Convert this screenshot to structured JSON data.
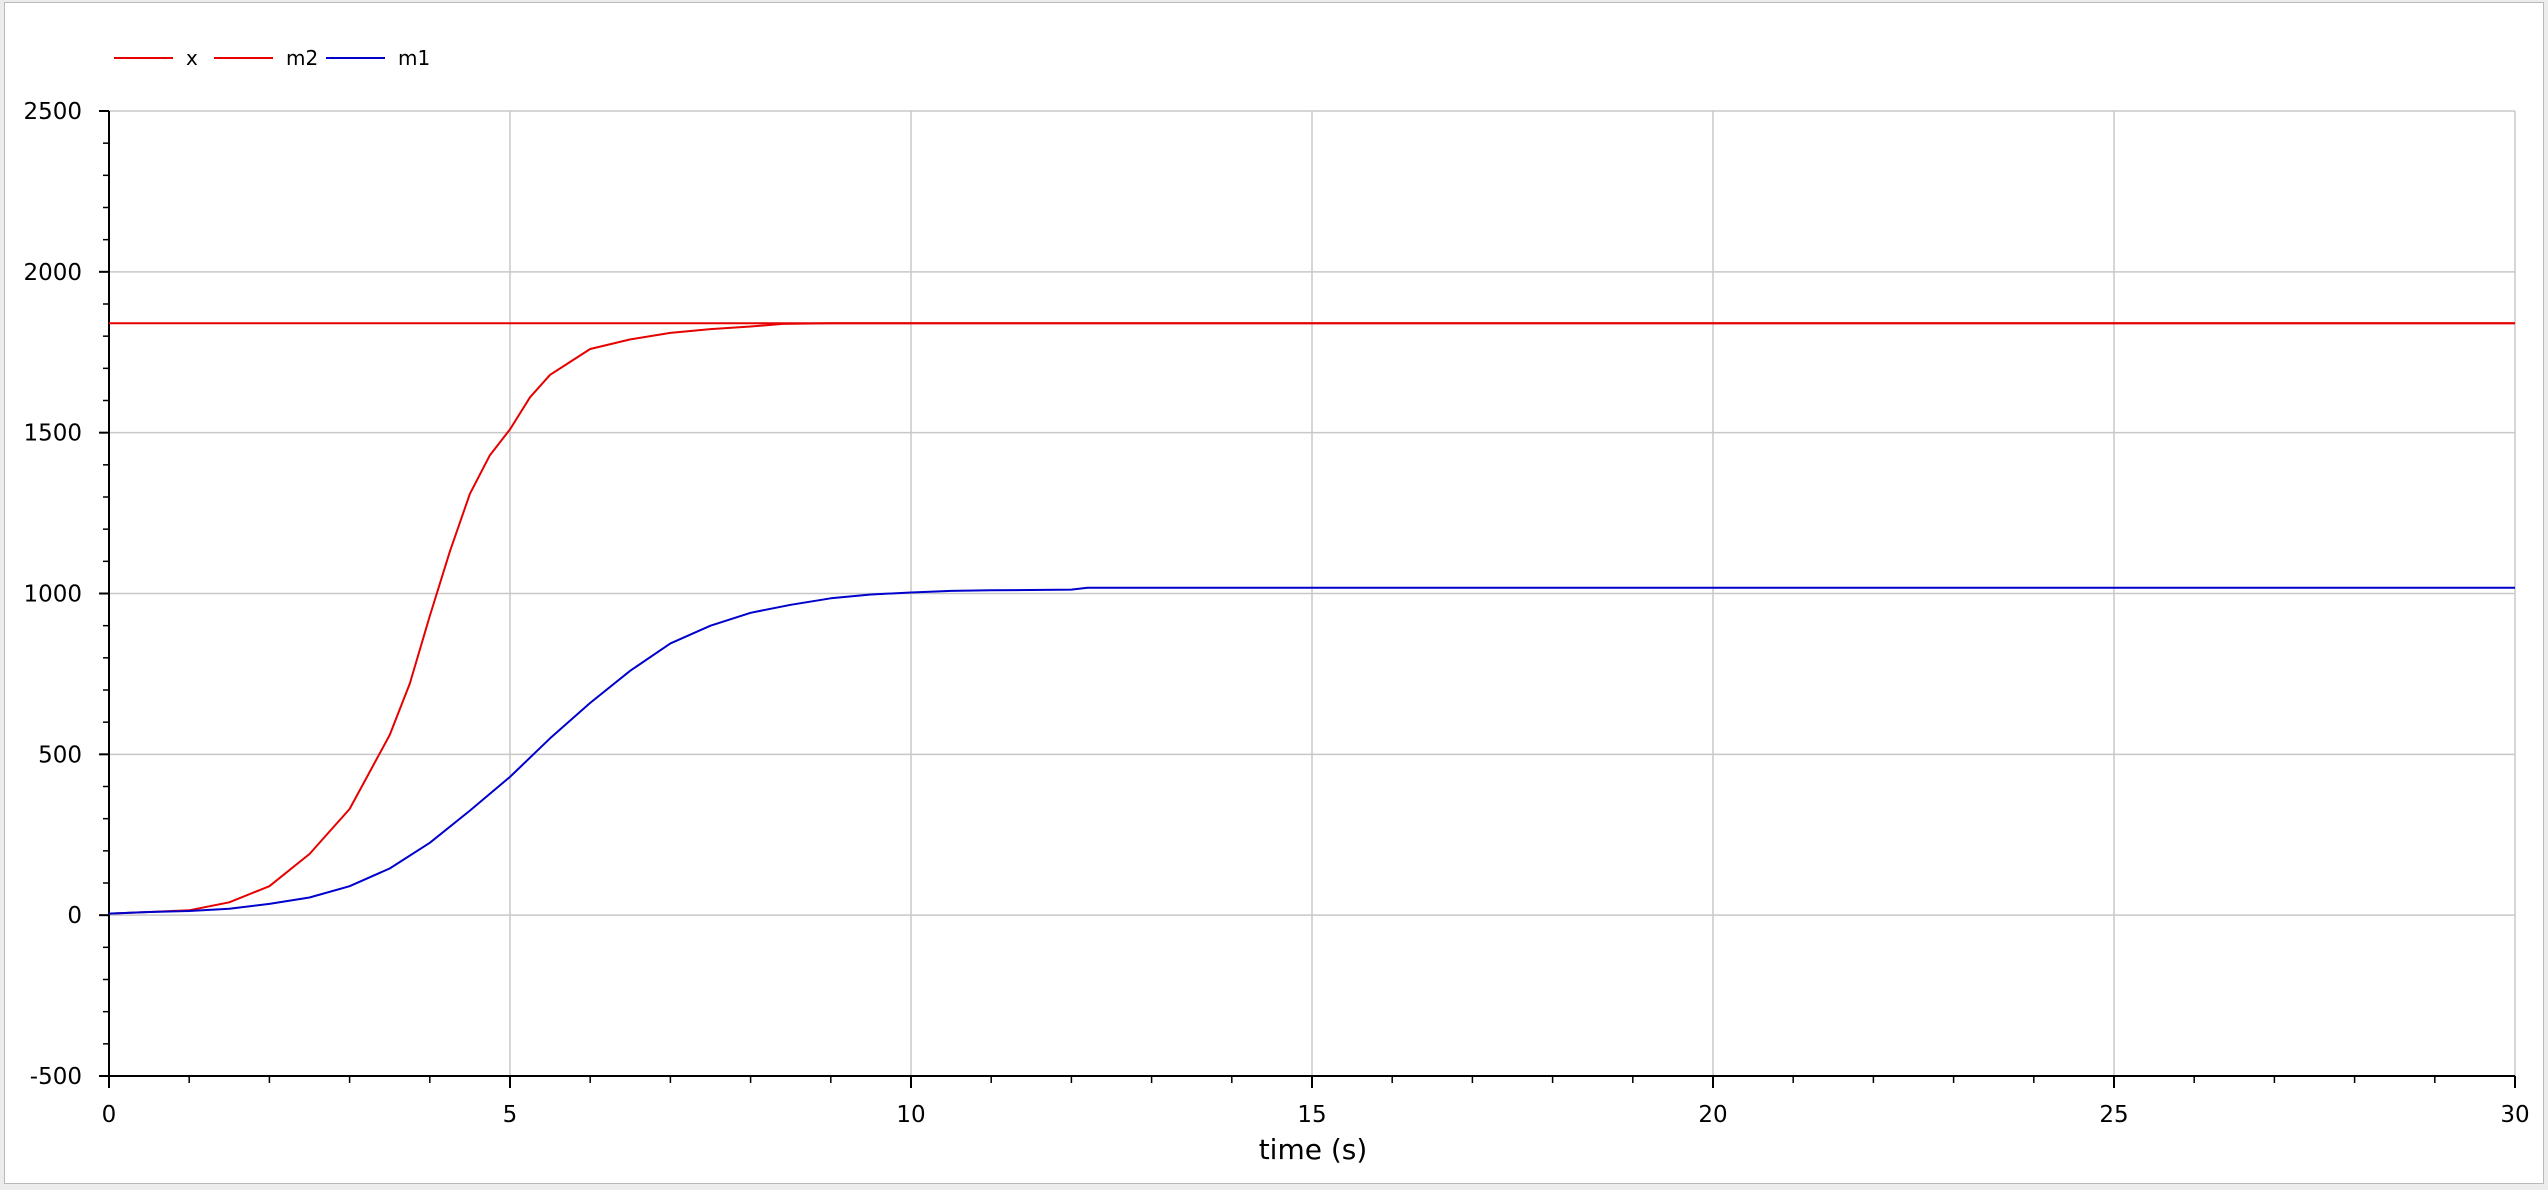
{
  "chart_data": {
    "type": "line",
    "title": "",
    "xlabel": "time (s)",
    "ylabel": "",
    "xlim": [
      0,
      30
    ],
    "ylim": [
      -500,
      2500
    ],
    "grid": true,
    "legend_position": "top-left",
    "x_ticks": [
      0,
      5,
      10,
      15,
      20,
      25,
      30
    ],
    "x_tick_labels": [
      "0",
      "5",
      "10",
      "15",
      "20",
      "25",
      "30"
    ],
    "y_ticks": [
      -500,
      0,
      500,
      1000,
      1500,
      2000,
      2500
    ],
    "y_tick_labels": [
      "-500",
      "0",
      "500",
      "1000",
      "1500",
      "2000",
      "2500"
    ],
    "series": [
      {
        "name": "x",
        "color": "#e60000",
        "x": [
          0,
          30
        ],
        "values": [
          1840,
          1840
        ],
        "hidden_behind": "m2"
      },
      {
        "name": "m2",
        "color": "#e60000",
        "x": [
          0,
          0.5,
          1,
          1.5,
          2,
          2.5,
          3,
          3.5,
          3.75,
          4,
          4.25,
          4.5,
          4.75,
          5,
          5.25,
          5.5,
          5.75,
          6,
          6.5,
          7,
          7.5,
          8,
          8.4,
          9,
          10,
          12,
          15,
          20,
          25,
          30
        ],
        "values": [
          5,
          10,
          15,
          40,
          90,
          190,
          330,
          560,
          720,
          930,
          1130,
          1310,
          1430,
          1510,
          1610,
          1680,
          1720,
          1760,
          1790,
          1810,
          1822,
          1830,
          1838,
          1840,
          1840,
          1840,
          1840,
          1840,
          1840,
          1840
        ]
      },
      {
        "name": "m1",
        "color": "#0000cc",
        "x": [
          0,
          0.5,
          1,
          1.5,
          2,
          2.5,
          3,
          3.5,
          4,
          4.5,
          5,
          5.5,
          6,
          6.5,
          7,
          7.5,
          8,
          8.5,
          9,
          9.5,
          10,
          10.5,
          11,
          12,
          12.2,
          15,
          20,
          25,
          30
        ],
        "values": [
          5,
          10,
          13,
          20,
          35,
          55,
          90,
          145,
          225,
          325,
          430,
          550,
          660,
          760,
          845,
          900,
          940,
          965,
          985,
          997,
          1003,
          1008,
          1010,
          1012,
          1018,
          1018,
          1018,
          1018,
          1018
        ]
      }
    ]
  }
}
